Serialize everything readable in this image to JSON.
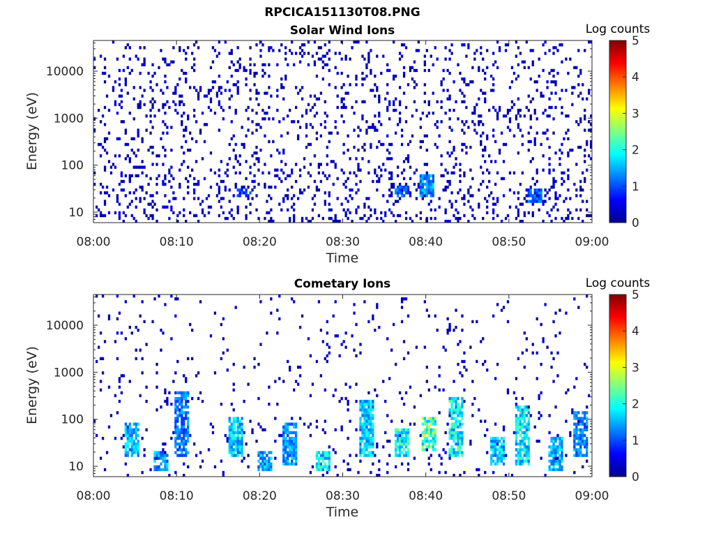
{
  "figure_title": "RPCICA151130T08.PNG",
  "chart_data": [
    {
      "type": "heatmap",
      "title": "Solar Wind Ions",
      "xlabel": "Time",
      "ylabel": "Energy (eV)",
      "x_ticks": [
        "08:00",
        "08:10",
        "08:20",
        "08:30",
        "08:40",
        "08:50",
        "09:00"
      ],
      "xlim": [
        "08:00",
        "09:00"
      ],
      "y_ticks": [
        "10",
        "100",
        "1000",
        "10000"
      ],
      "y_scale": "log",
      "ylim": [
        6,
        45000
      ],
      "colorbar": {
        "label": "Log counts",
        "ticks": [
          "0",
          "1",
          "2",
          "3",
          "4",
          "5"
        ],
        "range": [
          0,
          5
        ],
        "colormap": "jet"
      },
      "background": "#ffffff",
      "features": [
        {
          "description_time_min": 40,
          "energy_range_eV": [
            20,
            60
          ],
          "peak_log_counts": 1.8
        },
        {
          "description_time_min": 37,
          "energy_range_eV": [
            20,
            35
          ],
          "peak_log_counts": 1.5
        },
        {
          "description_time_min": 53,
          "energy_range_eV": [
            15,
            30
          ],
          "peak_log_counts": 1.4
        },
        {
          "description_time_min": 18,
          "energy_range_eV": [
            20,
            30
          ],
          "peak_log_counts": 1.2
        }
      ],
      "background_level_log_counts": 0.1
    },
    {
      "type": "heatmap",
      "title": "Cometary Ions",
      "xlabel": "Time",
      "ylabel": "Energy (eV)",
      "x_ticks": [
        "08:00",
        "08:10",
        "08:20",
        "08:30",
        "08:40",
        "08:50",
        "09:00"
      ],
      "xlim": [
        "08:00",
        "09:00"
      ],
      "y_ticks": [
        "10",
        "100",
        "1000",
        "10000"
      ],
      "y_scale": "log",
      "ylim": [
        6,
        45000
      ],
      "colorbar": {
        "label": "Log counts",
        "ticks": [
          "0",
          "1",
          "2",
          "3",
          "4",
          "5"
        ],
        "range": [
          0,
          5
        ],
        "colormap": "jet"
      },
      "background": "#ffffff",
      "features": [
        {
          "time_min": 4.5,
          "energy_range_eV": [
            15,
            90
          ],
          "peak_log_counts": 2.0
        },
        {
          "time_min": 8,
          "energy_range_eV": [
            8,
            20
          ],
          "peak_log_counts": 1.8
        },
        {
          "time_min": 10.5,
          "energy_range_eV": [
            15,
            400
          ],
          "peak_log_counts": 1.6
        },
        {
          "time_min": 17,
          "energy_range_eV": [
            15,
            120
          ],
          "peak_log_counts": 2.2
        },
        {
          "time_min": 20.5,
          "energy_range_eV": [
            8,
            20
          ],
          "peak_log_counts": 1.9
        },
        {
          "time_min": 23.5,
          "energy_range_eV": [
            10,
            80
          ],
          "peak_log_counts": 1.8
        },
        {
          "time_min": 27.5,
          "energy_range_eV": [
            8,
            20
          ],
          "peak_log_counts": 2.3
        },
        {
          "time_min": 32.8,
          "energy_range_eV": [
            15,
            250
          ],
          "peak_log_counts": 2.1
        },
        {
          "time_min": 37,
          "energy_range_eV": [
            15,
            60
          ],
          "peak_log_counts": 2.5
        },
        {
          "time_min": 40.3,
          "energy_range_eV": [
            20,
            120
          ],
          "peak_log_counts": 2.9
        },
        {
          "time_min": 43.5,
          "energy_range_eV": [
            15,
            300
          ],
          "peak_log_counts": 2.4
        },
        {
          "time_min": 48.5,
          "energy_range_eV": [
            10,
            40
          ],
          "peak_log_counts": 2.2
        },
        {
          "time_min": 51.5,
          "energy_range_eV": [
            10,
            200
          ],
          "peak_log_counts": 2.3
        },
        {
          "time_min": 55.5,
          "energy_range_eV": [
            8,
            40
          ],
          "peak_log_counts": 2.0
        },
        {
          "time_min": 58.5,
          "energy_range_eV": [
            15,
            150
          ],
          "peak_log_counts": 1.7
        }
      ],
      "background_level_log_counts": 0.03
    }
  ]
}
